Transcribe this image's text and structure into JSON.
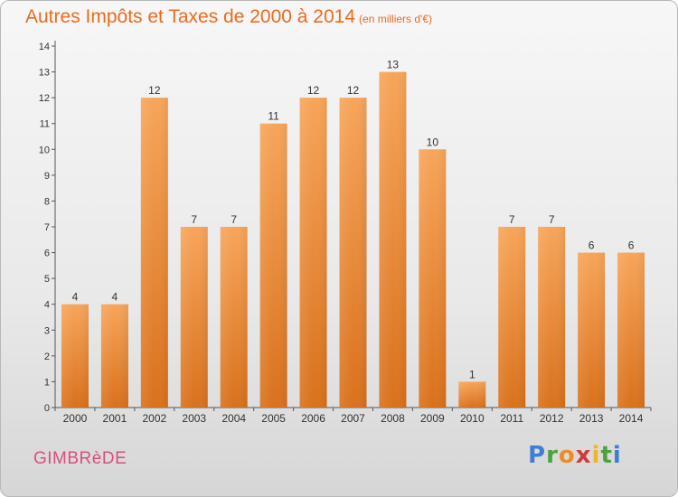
{
  "header": {
    "title": "Autres Impôts et Taxes de 2000 à 2014",
    "unit": "(en milliers d'€)"
  },
  "footer": {
    "commune": "GIMBRèDE",
    "logo_letters": [
      "P",
      "r",
      "o",
      "x",
      "i",
      "t",
      "i"
    ],
    "logo_colors": [
      "#3d7fd0",
      "#4aa33d",
      "#f08a24",
      "#d23a3a",
      "#f0b428",
      "#4aa33d",
      "#3d7fd0"
    ]
  },
  "colors": {
    "bar_top": "#f7a55a",
    "bar_bottom": "#d9711c",
    "axis": "#555555",
    "text": "#333333"
  },
  "chart_data": {
    "type": "bar",
    "categories": [
      "2000",
      "2001",
      "2002",
      "2003",
      "2004",
      "2005",
      "2006",
      "2007",
      "2008",
      "2009",
      "2010",
      "2011",
      "2012",
      "2013",
      "2014"
    ],
    "values": [
      4,
      4,
      12,
      7,
      7,
      11,
      12,
      12,
      13,
      10,
      1,
      7,
      7,
      6,
      6
    ],
    "data_labels": [
      "4",
      "4",
      "12",
      "7",
      "7",
      "11",
      "12",
      "12",
      "13",
      "10",
      "1",
      "7",
      "7",
      "6",
      "6"
    ],
    "yticks": [
      "0",
      "1",
      "2",
      "3",
      "4",
      "5",
      "6",
      "7",
      "8",
      "9",
      "10",
      "11",
      "12",
      "13",
      "14"
    ],
    "ylim": [
      0,
      14
    ],
    "grid": false,
    "title": "Autres Impôts et Taxes de 2000 à 2014",
    "xlabel": "",
    "ylabel": ""
  }
}
